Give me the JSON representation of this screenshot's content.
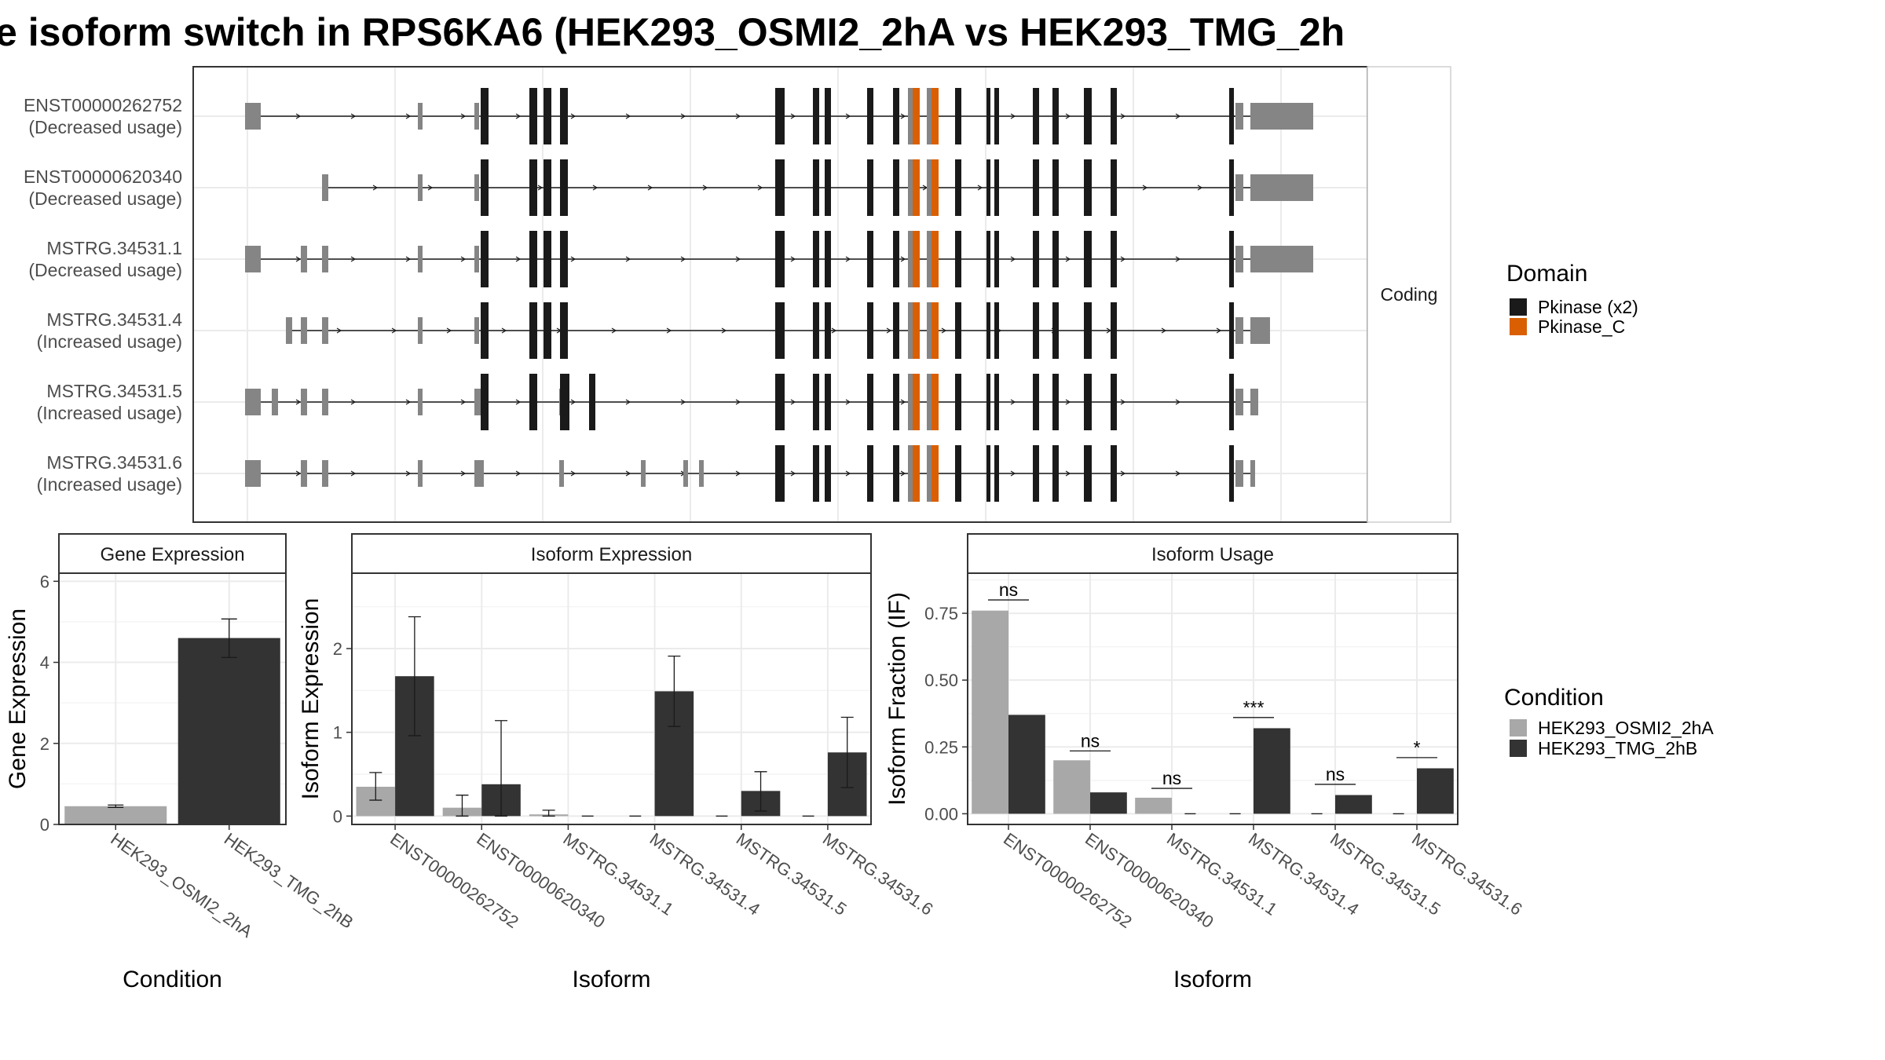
{
  "title": "e isoform switch in RPS6KA6 (HEK293_OSMI2_2hA vs HEK293_TMG_2h",
  "colors": {
    "utr": "#858585",
    "cds": "#1a1a1a",
    "pkinase": "#1a1a1a",
    "pkinase_c": "#d95f02",
    "cond_a": "#a8a8a8",
    "cond_b": "#333333",
    "grid": "#ebebeb",
    "panel_border": "#333333"
  },
  "structure": {
    "strip_label": "Coding",
    "isoforms": [
      {
        "id": "ENST00000262752",
        "usage": "(Decreased usage)"
      },
      {
        "id": "ENST00000620340",
        "usage": "(Decreased usage)"
      },
      {
        "id": "MSTRG.34531.1",
        "usage": "(Decreased usage)"
      },
      {
        "id": "MSTRG.34531.4",
        "usage": "(Increased usage)"
      },
      {
        "id": "MSTRG.34531.5",
        "usage": "(Increased usage)"
      },
      {
        "id": "MSTRG.34531.6",
        "usage": "(Increased usage)"
      }
    ]
  },
  "legend_domain": {
    "title": "Domain",
    "items": [
      {
        "label": "Pkinase (x2)",
        "color": "#1a1a1a"
      },
      {
        "label": "Pkinase_C",
        "color": "#d95f02"
      }
    ]
  },
  "legend_condition": {
    "title": "Condition",
    "items": [
      {
        "label": "HEK293_OSMI2_2hA",
        "color": "#a8a8a8"
      },
      {
        "label": "HEK293_TMG_2hB",
        "color": "#333333"
      }
    ]
  },
  "chart_data": [
    {
      "type": "bar",
      "panel": "Gene Expression",
      "xlabel": "Condition",
      "ylabel": "Gene Expression",
      "categories": [
        "HEK293_OSMI2_2hA",
        "HEK293_TMG_2hB"
      ],
      "values": [
        0.45,
        4.6
      ],
      "errors": [
        [
          0.42,
          0.48
        ],
        [
          4.12,
          5.07
        ]
      ],
      "ylim": [
        0,
        6.2
      ],
      "yticks": [
        0,
        2,
        4,
        6
      ]
    },
    {
      "type": "bar",
      "panel": "Isoform Expression",
      "xlabel": "Isoform",
      "ylabel": "Isoform Expression",
      "categories": [
        "ENST00000262752",
        "ENST00000620340",
        "MSTRG.34531.1",
        "MSTRG.34531.4",
        "MSTRG.34531.5",
        "MSTRG.34531.6"
      ],
      "series": [
        {
          "name": "HEK293_OSMI2_2hA",
          "values": [
            0.35,
            0.1,
            0.02,
            0,
            0,
            0
          ],
          "errors": [
            [
              0.19,
              0.52
            ],
            [
              0.0,
              0.25
            ],
            [
              0.0,
              0.07
            ],
            null,
            null,
            null
          ]
        },
        {
          "name": "HEK293_TMG_2hB",
          "values": [
            1.67,
            0.38,
            0,
            1.49,
            0.3,
            0.76
          ],
          "errors": [
            [
              0.96,
              2.38
            ],
            [
              0.0,
              1.14
            ],
            null,
            [
              1.07,
              1.91
            ],
            [
              0.06,
              0.53
            ],
            [
              0.34,
              1.18
            ]
          ]
        }
      ],
      "ylim": [
        -0.1,
        2.9
      ],
      "yticks": [
        0,
        1,
        2
      ]
    },
    {
      "type": "bar",
      "panel": "Isoform Usage",
      "xlabel": "Isoform",
      "ylabel": "Isoform Fraction (IF)",
      "categories": [
        "ENST00000262752",
        "ENST00000620340",
        "MSTRG.34531.1",
        "MSTRG.34531.4",
        "MSTRG.34531.5",
        "MSTRG.34531.6"
      ],
      "series": [
        {
          "name": "HEK293_OSMI2_2hA",
          "values": [
            0.76,
            0.2,
            0.06,
            0,
            0,
            0
          ]
        },
        {
          "name": "HEK293_TMG_2hB",
          "values": [
            0.37,
            0.08,
            0,
            0.32,
            0.07,
            0.17
          ]
        }
      ],
      "significance": [
        "ns",
        "ns",
        "ns",
        "***",
        "ns",
        "*"
      ],
      "sig_y": [
        0.8,
        0.235,
        0.095,
        0.36,
        0.11,
        0.21
      ],
      "ylim": [
        -0.04,
        0.9
      ],
      "yticks": [
        "0.00",
        "0.25",
        "0.50",
        "0.75"
      ]
    }
  ]
}
